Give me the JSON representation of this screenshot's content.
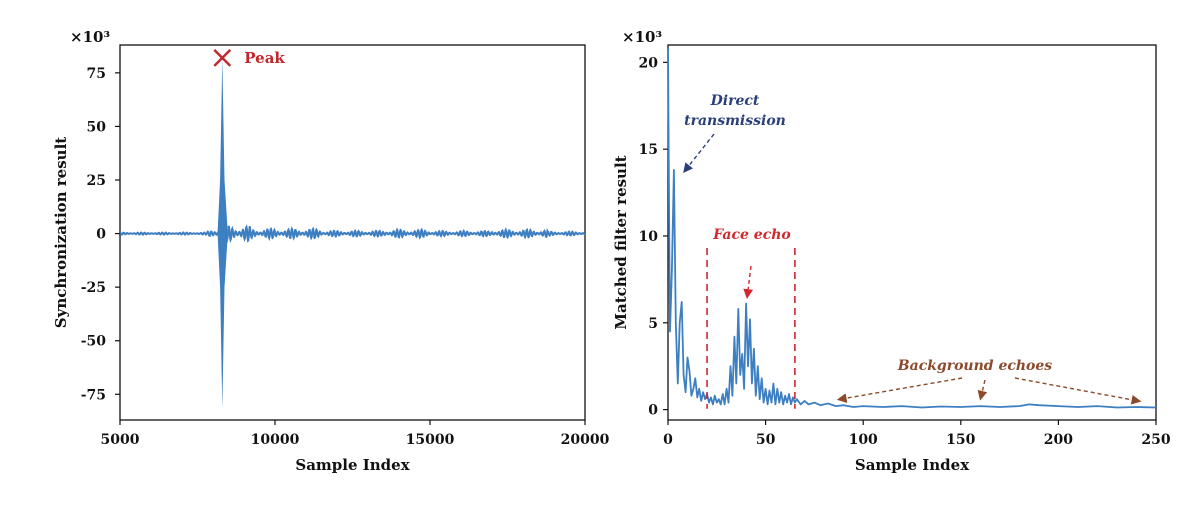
{
  "chart_data": [
    {
      "type": "line",
      "panel": "left",
      "xlabel": "Sample Index",
      "ylabel": "Synchronization result",
      "y_multiplier": "×10³",
      "xlim": [
        5000,
        20000
      ],
      "ylim": [
        -87,
        88
      ],
      "xticks": [
        5000,
        10000,
        15000,
        20000
      ],
      "yticks": [
        -75,
        -50,
        -25,
        0,
        25,
        50,
        75
      ],
      "grid": false,
      "color": "#3d7fc1",
      "peak": {
        "x": 8300,
        "y": 82,
        "label": "Peak",
        "color": "#c0282d"
      },
      "series": [
        {
          "description_points": [
            {
              "x": 5000,
              "y": 0
            },
            {
              "x": 7900,
              "y": 0
            },
            {
              "x": 8000,
              "y": 3
            },
            {
              "x": 8300,
              "y": 82
            },
            {
              "x": 8300,
              "y": -82
            },
            {
              "x": 8700,
              "y": 5
            },
            {
              "x": 9000,
              "y": 3
            },
            {
              "x": 10000,
              "y": 2
            },
            {
              "x": 12000,
              "y": 1.5
            },
            {
              "x": 14000,
              "y": 1.8
            },
            {
              "x": 17000,
              "y": 1.5
            },
            {
              "x": 18500,
              "y": 2
            },
            {
              "x": 20000,
              "y": 0.5
            }
          ]
        }
      ]
    },
    {
      "type": "line",
      "panel": "right",
      "xlabel": "Sample Index",
      "ylabel": "Matched filter result",
      "y_multiplier": "×10³",
      "xlim": [
        0,
        250
      ],
      "ylim": [
        -0.6,
        21
      ],
      "xticks": [
        0,
        50,
        100,
        150,
        200,
        250
      ],
      "yticks": [
        0,
        5,
        10,
        15,
        20
      ],
      "grid": false,
      "color": "#3d7fc1",
      "series": [
        {
          "points": [
            [
              0,
              20.8
            ],
            [
              0.5,
              12
            ],
            [
              1,
              4.5
            ],
            [
              2,
              8
            ],
            [
              3,
              13.8
            ],
            [
              4,
              5
            ],
            [
              5,
              1.5
            ],
            [
              6,
              5
            ],
            [
              7,
              6.2
            ],
            [
              8,
              2
            ],
            [
              9,
              1
            ],
            [
              10,
              3
            ],
            [
              11,
              2.2
            ],
            [
              12,
              0.8
            ],
            [
              13,
              1.2
            ],
            [
              14,
              1.8
            ],
            [
              15,
              0.7
            ],
            [
              16,
              1.2
            ],
            [
              17,
              0.5
            ],
            [
              18,
              1
            ],
            [
              19,
              0.6
            ],
            [
              20,
              0.9
            ],
            [
              21,
              0.4
            ],
            [
              22,
              0.7
            ],
            [
              23,
              0.3
            ],
            [
              24,
              0.8
            ],
            [
              25,
              0.4
            ],
            [
              26,
              0.6
            ],
            [
              27,
              0.3
            ],
            [
              28,
              0.9
            ],
            [
              29,
              0.3
            ],
            [
              30,
              1.2
            ],
            [
              31,
              0.4
            ],
            [
              32,
              2.5
            ],
            [
              33,
              0.8
            ],
            [
              34,
              4.2
            ],
            [
              35,
              1.5
            ],
            [
              36,
              5.8
            ],
            [
              37,
              2
            ],
            [
              38,
              3.2
            ],
            [
              39,
              1.2
            ],
            [
              40,
              6.1
            ],
            [
              41,
              2.5
            ],
            [
              42,
              5.2
            ],
            [
              43,
              1.5
            ],
            [
              44,
              3.5
            ],
            [
              45,
              0.8
            ],
            [
              46,
              2.5
            ],
            [
              47,
              0.6
            ],
            [
              48,
              1.8
            ],
            [
              49,
              0.4
            ],
            [
              50,
              1.2
            ],
            [
              51,
              0.3
            ],
            [
              52,
              1.1
            ],
            [
              53,
              0.4
            ],
            [
              54,
              1.5
            ],
            [
              55,
              0.3
            ],
            [
              56,
              1.2
            ],
            [
              57,
              0.4
            ],
            [
              58,
              1
            ],
            [
              59,
              0.3
            ],
            [
              60,
              0.8
            ],
            [
              61,
              0.4
            ],
            [
              62,
              0.9
            ],
            [
              63,
              0.3
            ],
            [
              64,
              0.7
            ],
            [
              65,
              0.4
            ],
            [
              66,
              0.6
            ],
            [
              68,
              0.3
            ],
            [
              70,
              0.5
            ],
            [
              72,
              0.3
            ],
            [
              75,
              0.4
            ],
            [
              78,
              0.25
            ],
            [
              82,
              0.35
            ],
            [
              86,
              0.2
            ],
            [
              90,
              0.25
            ],
            [
              95,
              0.15
            ],
            [
              100,
              0.2
            ],
            [
              110,
              0.15
            ],
            [
              120,
              0.2
            ],
            [
              130,
              0.12
            ],
            [
              140,
              0.18
            ],
            [
              150,
              0.15
            ],
            [
              160,
              0.2
            ],
            [
              170,
              0.15
            ],
            [
              180,
              0.2
            ],
            [
              185,
              0.3
            ],
            [
              190,
              0.25
            ],
            [
              200,
              0.2
            ],
            [
              210,
              0.15
            ],
            [
              220,
              0.2
            ],
            [
              230,
              0.12
            ],
            [
              240,
              0.15
            ],
            [
              250,
              0.12
            ]
          ]
        }
      ],
      "annotations": [
        {
          "text_lines": [
            "Direct",
            "transmission"
          ],
          "color": "#2a3f7a",
          "arrow_to": [
            5,
            13.9
          ]
        },
        {
          "text_lines": [
            "Face echo"
          ],
          "color": "#d1282d",
          "arrow_to": [
            40,
            6.2
          ],
          "vlines": [
            20,
            65
          ]
        },
        {
          "text_lines": [
            "Background echoes"
          ],
          "color": "#8b4a2b",
          "arrows_to": [
            [
              87,
              0.4
            ],
            [
              160,
              0.4
            ],
            [
              242,
              0.3
            ]
          ]
        }
      ]
    }
  ]
}
